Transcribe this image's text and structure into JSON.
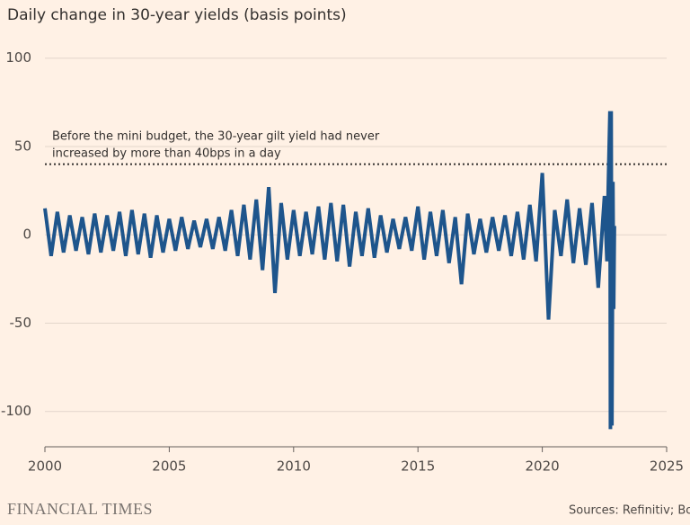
{
  "chart_data": {
    "type": "line",
    "title": "Daily change in 30-year yields (basis points)",
    "annotation": "Before the mini budget, the 30-year gilt yield had never increased by more than 40bps in a day",
    "annotation_lines": [
      "Before the mini budget, the 30-year gilt yield had never",
      "increased by more than 40bps in a day"
    ],
    "reference_line": 40,
    "source": "Sources: Refinitiv; BoE",
    "brand": "FINANCIAL TIMES",
    "x": [
      2000,
      2000.25,
      2000.5,
      2000.75,
      2001,
      2001.25,
      2001.5,
      2001.75,
      2002,
      2002.25,
      2002.5,
      2002.75,
      2003,
      2003.25,
      2003.5,
      2003.75,
      2004,
      2004.25,
      2004.5,
      2004.75,
      2005,
      2005.25,
      2005.5,
      2005.75,
      2006,
      2006.25,
      2006.5,
      2006.75,
      2007,
      2007.25,
      2007.5,
      2007.75,
      2008,
      2008.25,
      2008.5,
      2008.75,
      2009,
      2009.25,
      2009.5,
      2009.75,
      2010,
      2010.25,
      2010.5,
      2010.75,
      2011,
      2011.25,
      2011.5,
      2011.75,
      2012,
      2012.25,
      2012.5,
      2012.75,
      2013,
      2013.25,
      2013.5,
      2013.75,
      2014,
      2014.25,
      2014.5,
      2014.75,
      2015,
      2015.25,
      2015.5,
      2015.75,
      2016,
      2016.25,
      2016.5,
      2016.75,
      2017,
      2017.25,
      2017.5,
      2017.75,
      2018,
      2018.25,
      2018.5,
      2018.75,
      2019,
      2019.25,
      2019.5,
      2019.75,
      2020,
      2020.25,
      2020.5,
      2020.75,
      2021,
      2021.25,
      2021.5,
      2021.75,
      2022,
      2022.25,
      2022.5,
      2022.6,
      2022.65,
      2022.72,
      2022.74,
      2022.77,
      2022.8,
      2022.84,
      2022.87,
      2022.9
    ],
    "series": [
      {
        "name": "Daily change",
        "color": "#1e558c",
        "values": [
          15,
          -12,
          13,
          -10,
          11,
          -9,
          10,
          -11,
          12,
          -10,
          11,
          -9,
          13,
          -12,
          14,
          -11,
          12,
          -13,
          11,
          -10,
          9,
          -9,
          10,
          -8,
          8,
          -7,
          9,
          -8,
          10,
          -9,
          14,
          -12,
          17,
          -14,
          20,
          -20,
          27,
          -33,
          18,
          -14,
          14,
          -12,
          13,
          -11,
          16,
          -14,
          18,
          -15,
          17,
          -18,
          13,
          -12,
          15,
          -13,
          11,
          -10,
          9,
          -8,
          10,
          -9,
          16,
          -14,
          13,
          -12,
          14,
          -16,
          10,
          -28,
          12,
          -11,
          9,
          -10,
          10,
          -9,
          11,
          -12,
          13,
          -14,
          17,
          -15,
          35,
          -48,
          14,
          -12,
          20,
          -16,
          15,
          -17,
          18,
          -30,
          22,
          -15,
          25,
          70,
          -110,
          70,
          -108,
          30,
          -42,
          5
        ]
      }
    ],
    "xlim": [
      2000,
      2025
    ],
    "xticks": [
      2000,
      2005,
      2010,
      2015,
      2020,
      2025
    ],
    "ylim": [
      -120,
      100
    ],
    "yticks": [
      -100,
      -50,
      0,
      50,
      100
    ],
    "grid": true
  }
}
